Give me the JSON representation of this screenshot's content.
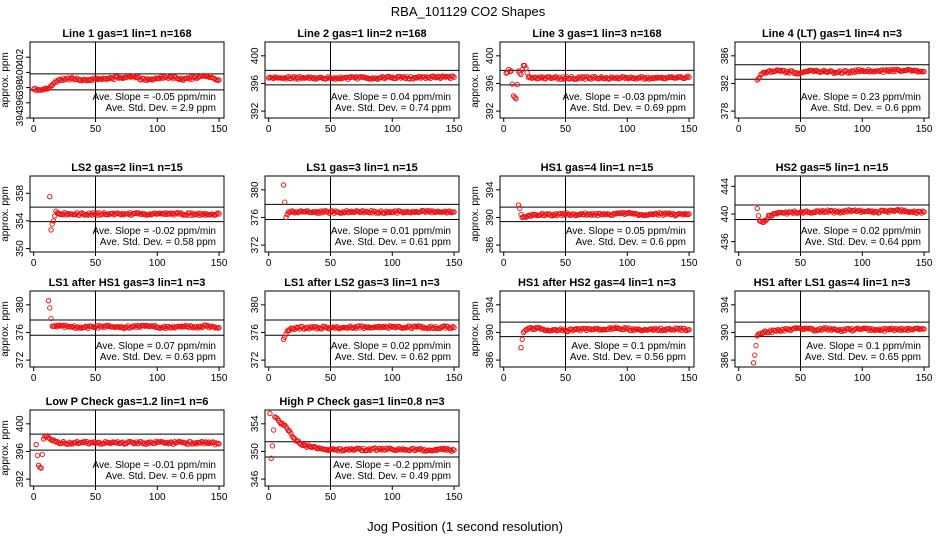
{
  "figure": {
    "title": "RBA_101129  CO2 Shapes",
    "xlabel": "Jog Position (1 second resolution)"
  },
  "chart_data": [
    {
      "type": "scatter",
      "title": "Line 1 gas=1 lin=1 n=168",
      "ylabel": "approx. ppm",
      "xlim": [
        -3,
        154
      ],
      "ylim": [
        394,
        404
      ],
      "yticks": [
        394,
        396,
        398,
        400,
        402
      ],
      "xticks": [
        0,
        50,
        100,
        150
      ],
      "hlines": [
        399.8,
        397.7
      ],
      "vline": 50,
      "annotation": [
        "Ave. Slope = -0.05  ppm/min",
        "Ave. Std. Dev. = 2.9  ppm"
      ],
      "series": [
        {
          "x": [
            0,
            5,
            10,
            15,
            20,
            30,
            40,
            50,
            60,
            70,
            80,
            90,
            100,
            110,
            120,
            130,
            140,
            150
          ],
          "y": [
            397.8,
            397.7,
            397.9,
            398.3,
            399.0,
            399.2,
            399.0,
            399.1,
            399.2,
            399.3,
            399.5,
            399.0,
            399.2,
            399.4,
            399.1,
            399.3,
            399.5,
            399.0
          ]
        }
      ]
    },
    {
      "type": "scatter",
      "title": "Line 2 gas=1 lin=2 n=168",
      "ylabel": "",
      "xlim": [
        -3,
        154
      ],
      "ylim": [
        391,
        402
      ],
      "yticks": [
        392,
        396,
        400
      ],
      "xticks": [
        0,
        50,
        100,
        150
      ],
      "hlines": [
        397.9,
        395.8
      ],
      "vline": 50,
      "annotation": [
        "Ave. Slope = 0.04  ppm/min",
        "Ave. Std. Dev. = 0.74  ppm"
      ],
      "series": [
        {
          "x": [
            0,
            10,
            20,
            30,
            40,
            50,
            60,
            70,
            80,
            90,
            100,
            110,
            120,
            130,
            140,
            150
          ],
          "y": [
            396.8,
            396.8,
            396.8,
            396.8,
            396.8,
            396.8,
            396.8,
            396.8,
            396.8,
            396.8,
            396.9,
            396.8,
            396.8,
            396.9,
            396.9,
            396.9
          ]
        }
      ]
    },
    {
      "type": "scatter",
      "title": "Line 3 gas=1 lin=3 n=168",
      "ylabel": "approx. ppm",
      "xlim": [
        -3,
        154
      ],
      "ylim": [
        391,
        402
      ],
      "yticks": [
        392,
        396,
        400
      ],
      "xticks": [
        0,
        50,
        100,
        150
      ],
      "hlines": [
        397.9,
        395.8
      ],
      "vline": 50,
      "annotation": [
        "Ave. Slope = -0.03  ppm/min",
        "Ave. Std. Dev. = 0.69  ppm"
      ],
      "series": [
        {
          "x": [
            2,
            4,
            6,
            8,
            10,
            12,
            14,
            16,
            18,
            20,
            30,
            40,
            50,
            60,
            70,
            80,
            90,
            100,
            110,
            120,
            130,
            140,
            150
          ],
          "y": [
            397.5,
            398.0,
            397.8,
            394.2,
            393.8,
            397.8,
            397.3,
            398.6,
            398.2,
            396.9,
            396.8,
            396.8,
            396.8,
            396.8,
            396.8,
            396.8,
            396.8,
            396.8,
            396.8,
            396.8,
            396.8,
            396.8,
            396.9
          ]
        }
      ]
    },
    {
      "type": "scatter",
      "title": "Line 4 (LT) gas=1 lin=4 n=3",
      "ylabel": "",
      "xlim": [
        -3,
        154
      ],
      "ylim": [
        377,
        388
      ],
      "yticks": [
        378,
        382,
        386
      ],
      "xticks": [
        0,
        50,
        100,
        150
      ],
      "hlines": [
        384.7,
        382.6
      ],
      "vline": 50,
      "annotation": [
        "Ave. Slope = 0.23  ppm/min",
        "Ave. Std. Dev. = 0.6  ppm"
      ],
      "series": [
        {
          "x": [
            15,
            20,
            30,
            40,
            50,
            60,
            70,
            80,
            90,
            100,
            110,
            120,
            130,
            140,
            150
          ],
          "y": [
            382.5,
            383.6,
            383.8,
            383.7,
            383.5,
            383.8,
            383.7,
            383.6,
            383.7,
            383.9,
            383.7,
            383.8,
            383.9,
            383.8,
            383.7
          ]
        }
      ]
    },
    {
      "type": "scatter",
      "title": "LS2 gas=2 lin=1 n=15",
      "ylabel": "approx. ppm",
      "xlim": [
        -3,
        154
      ],
      "ylim": [
        349.5,
        360.5
      ],
      "yticks": [
        350,
        354,
        358
      ],
      "xticks": [
        0,
        50,
        100,
        150
      ],
      "hlines": [
        356.0,
        353.9
      ],
      "vline": 50,
      "annotation": [
        "Ave. Slope = -0.02  ppm/min",
        "Ave. Std. Dev. = 0.58  ppm"
      ],
      "series": [
        {
          "x": [
            13,
            14,
            16,
            18,
            20,
            30,
            40,
            50,
            60,
            70,
            80,
            90,
            100,
            110,
            120,
            130,
            140,
            150
          ],
          "y": [
            357.5,
            352.7,
            354.0,
            355.4,
            355.1,
            355.0,
            355.0,
            355.0,
            355.0,
            355.0,
            355.0,
            355.0,
            355.0,
            355.0,
            355.0,
            355.0,
            355.0,
            355.0
          ]
        }
      ]
    },
    {
      "type": "scatter",
      "title": "LS1 gas=3 lin=1 n=15",
      "ylabel": "",
      "xlim": [
        -3,
        154
      ],
      "ylim": [
        371,
        382
      ],
      "yticks": [
        372,
        376,
        380
      ],
      "xticks": [
        0,
        50,
        100,
        150
      ],
      "hlines": [
        377.9,
        375.7
      ],
      "vline": 50,
      "annotation": [
        "Ave. Slope = 0.01  ppm/min",
        "Ave. Std. Dev. = 0.61  ppm"
      ],
      "series": [
        {
          "x": [
            12,
            14,
            16,
            20,
            30,
            40,
            50,
            60,
            70,
            80,
            90,
            100,
            110,
            120,
            130,
            140,
            150
          ],
          "y": [
            380.7,
            376.0,
            376.8,
            376.8,
            376.8,
            376.8,
            376.8,
            376.8,
            376.8,
            376.8,
            376.8,
            376.8,
            376.8,
            376.8,
            376.8,
            376.8,
            376.8
          ]
        }
      ]
    },
    {
      "type": "scatter",
      "title": "HS1 gas=4 lin=1 n=15",
      "ylabel": "approx. ppm",
      "xlim": [
        -3,
        154
      ],
      "ylim": [
        385,
        396
      ],
      "yticks": [
        386,
        390,
        394
      ],
      "xticks": [
        0,
        50,
        100,
        150
      ],
      "hlines": [
        391.5,
        389.4
      ],
      "vline": 50,
      "annotation": [
        "Ave. Slope = 0.05  ppm/min",
        "Ave. Std. Dev. = 0.6  ppm"
      ],
      "series": [
        {
          "x": [
            12,
            15,
            20,
            30,
            40,
            50,
            60,
            70,
            80,
            90,
            100,
            110,
            120,
            130,
            140,
            150
          ],
          "y": [
            391.8,
            390.0,
            390.3,
            390.4,
            390.4,
            390.5,
            390.4,
            390.5,
            390.4,
            390.5,
            390.6,
            390.4,
            390.5,
            390.5,
            390.4,
            390.5
          ]
        }
      ]
    },
    {
      "type": "scatter",
      "title": "HS2 gas=5 lin=1 n=15",
      "ylabel": "",
      "xlim": [
        -3,
        154
      ],
      "ylim": [
        434.5,
        445.5
      ],
      "yticks": [
        436,
        440,
        444
      ],
      "xticks": [
        0,
        50,
        100,
        150
      ],
      "hlines": [
        441.3,
        439.2
      ],
      "vline": 50,
      "annotation": [
        "Ave. Slope = 0.02  ppm/min",
        "Ave. Std. Dev. = 0.64  ppm"
      ],
      "series": [
        {
          "x": [
            15,
            17,
            20,
            25,
            30,
            40,
            50,
            60,
            70,
            80,
            90,
            100,
            110,
            120,
            130,
            140,
            150
          ],
          "y": [
            440.8,
            439.0,
            438.8,
            439.8,
            440.1,
            440.2,
            440.3,
            440.2,
            440.4,
            440.3,
            440.5,
            440.4,
            440.3,
            440.4,
            440.5,
            440.3,
            440.3
          ]
        }
      ]
    },
    {
      "type": "scatter",
      "title": "LS1 after HS1 gas=3 lin=1 n=3",
      "ylabel": "approx. ppm",
      "xlim": [
        -3,
        154
      ],
      "ylim": [
        371,
        382
      ],
      "yticks": [
        372,
        376,
        380
      ],
      "xticks": [
        0,
        50,
        100,
        150
      ],
      "hlines": [
        377.8,
        375.6
      ],
      "vline": 50,
      "annotation": [
        "Ave. Slope = 0.07  ppm/min",
        "Ave. Std. Dev. = 0.63  ppm"
      ],
      "series": [
        {
          "x": [
            12,
            15,
            20,
            30,
            40,
            50,
            60,
            70,
            80,
            90,
            100,
            110,
            120,
            130,
            140,
            150
          ],
          "y": [
            380.6,
            376.9,
            377.0,
            376.8,
            376.7,
            376.8,
            376.9,
            376.7,
            376.8,
            376.9,
            376.8,
            376.7,
            376.9,
            376.8,
            376.9,
            376.7
          ]
        }
      ]
    },
    {
      "type": "scatter",
      "title": "LS1 after LS2 gas=3 lin=1 n=3",
      "ylabel": "",
      "xlim": [
        -3,
        154
      ],
      "ylim": [
        371,
        382
      ],
      "yticks": [
        372,
        376,
        380
      ],
      "xticks": [
        0,
        50,
        100,
        150
      ],
      "hlines": [
        377.8,
        375.6
      ],
      "vline": 50,
      "annotation": [
        "Ave. Slope = 0.02  ppm/min",
        "Ave. Std. Dev. = 0.62  ppm"
      ],
      "series": [
        {
          "x": [
            12,
            15,
            20,
            30,
            40,
            50,
            60,
            70,
            80,
            90,
            100,
            110,
            120,
            130,
            140,
            150
          ],
          "y": [
            375.0,
            376.2,
            376.6,
            376.7,
            376.7,
            376.7,
            376.7,
            376.8,
            376.7,
            376.7,
            376.8,
            376.7,
            376.8,
            376.7,
            376.8,
            376.7
          ]
        }
      ]
    },
    {
      "type": "scatter",
      "title": "HS1 after HS2 gas=4 lin=1 n=3",
      "ylabel": "approx. ppm",
      "xlim": [
        -3,
        154
      ],
      "ylim": [
        385,
        396
      ],
      "yticks": [
        386,
        390,
        394
      ],
      "xticks": [
        0,
        50,
        100,
        150
      ],
      "hlines": [
        391.5,
        389.4
      ],
      "vline": 50,
      "annotation": [
        "Ave. Slope = 0.1  ppm/min",
        "Ave. Std. Dev. = 0.56  ppm"
      ],
      "series": [
        {
          "x": [
            14,
            16,
            20,
            30,
            40,
            50,
            60,
            70,
            80,
            90,
            100,
            110,
            120,
            130,
            140,
            150
          ],
          "y": [
            387.8,
            390.0,
            390.6,
            390.5,
            390.4,
            390.3,
            390.4,
            390.5,
            390.4,
            390.6,
            390.5,
            390.4,
            390.5,
            390.4,
            390.5,
            390.4
          ]
        }
      ]
    },
    {
      "type": "scatter",
      "title": "HS1 after LS1 gas=4 lin=1 n=3",
      "ylabel": "",
      "xlim": [
        -3,
        154
      ],
      "ylim": [
        385,
        396
      ],
      "yticks": [
        386,
        390,
        394
      ],
      "xticks": [
        0,
        50,
        100,
        150
      ],
      "hlines": [
        391.5,
        389.4
      ],
      "vline": 50,
      "annotation": [
        "Ave. Slope = 0.1  ppm/min",
        "Ave. Std. Dev. = 0.65  ppm"
      ],
      "series": [
        {
          "x": [
            12,
            15,
            20,
            30,
            40,
            50,
            60,
            70,
            80,
            90,
            100,
            110,
            120,
            130,
            140,
            150
          ],
          "y": [
            385.6,
            389.5,
            390.0,
            390.3,
            390.4,
            390.6,
            390.4,
            390.5,
            390.3,
            390.4,
            390.5,
            390.3,
            390.4,
            390.5,
            390.4,
            390.5
          ]
        }
      ]
    },
    {
      "type": "scatter",
      "title": "Low P Check gas=1.2 lin=1 n=6",
      "ylabel": "approx. ppm",
      "xlim": [
        -3,
        154
      ],
      "ylim": [
        391,
        402
      ],
      "yticks": [
        392,
        396,
        400
      ],
      "xticks": [
        0,
        50,
        100,
        150
      ],
      "hlines": [
        398.5,
        396.2
      ],
      "vline": 50,
      "annotation": [
        "Ave. Slope = -0.01  ppm/min",
        "Ave. Std. Dev. = 0.6  ppm"
      ],
      "series": [
        {
          "x": [
            2,
            4,
            6,
            8,
            10,
            15,
            20,
            30,
            40,
            50,
            60,
            70,
            80,
            90,
            100,
            110,
            120,
            130,
            140,
            150
          ],
          "y": [
            397.0,
            394.0,
            393.6,
            397.8,
            398.2,
            397.6,
            397.3,
            397.2,
            397.3,
            397.2,
            397.3,
            397.2,
            397.3,
            397.2,
            397.3,
            397.2,
            397.3,
            397.2,
            397.3,
            397.1
          ]
        }
      ]
    },
    {
      "type": "scatter",
      "title": "High P Check gas=1 lin=0.8 n=3",
      "ylabel": "",
      "xlim": [
        -3,
        154
      ],
      "ylim": [
        345,
        356
      ],
      "yticks": [
        346,
        350,
        354
      ],
      "xticks": [
        0,
        50,
        100,
        150
      ],
      "hlines": [
        351.4,
        349.2
      ],
      "vline": 50,
      "annotation": [
        "Ave. Slope = -0.2  ppm/min",
        "Ave. Std. Dev. = 0.49  ppm"
      ],
      "series": [
        {
          "x": [
            1,
            2,
            5,
            8,
            10,
            13,
            16,
            20,
            25,
            30,
            35,
            40,
            45,
            50,
            60,
            70,
            80,
            90,
            100,
            110,
            120,
            130,
            140,
            150
          ],
          "y": [
            355.5,
            349.0,
            355.0,
            354.5,
            354.0,
            353.8,
            353.0,
            352.0,
            351.2,
            350.8,
            350.6,
            350.4,
            350.3,
            350.3,
            350.2,
            350.3,
            350.2,
            350.4,
            350.3,
            350.2,
            350.3,
            350.2,
            350.3,
            350.2
          ]
        }
      ]
    }
  ]
}
